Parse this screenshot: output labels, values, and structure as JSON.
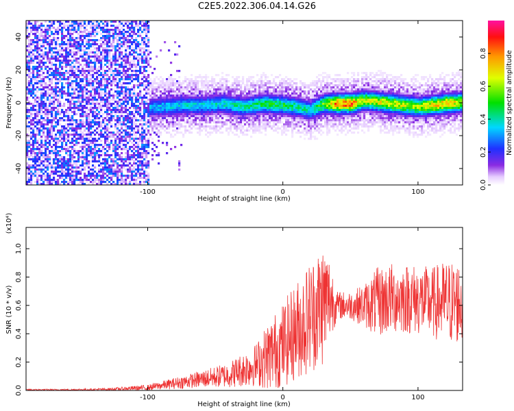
{
  "title": "C2E5.2022.306.04.14.G26",
  "chart_data": [
    {
      "type": "heatmap",
      "xlabel": "Height of straight line (km)",
      "ylabel": "Frequency (Hz)",
      "xlim": [
        -190,
        133
      ],
      "ylim": [
        -50,
        50
      ],
      "xticks": [
        "-100",
        "0",
        "100"
      ],
      "xtick_values": [
        -100,
        0,
        100
      ],
      "yticks": [
        "-40",
        "-20",
        "0",
        "20",
        "40"
      ],
      "ytick_values": [
        -40,
        -20,
        0,
        20,
        40
      ],
      "colorbar": {
        "label": "Normalized spectral amplitude",
        "range": [
          0,
          1
        ],
        "ticks": [
          "0.0",
          "0.2",
          "0.4",
          "0.6",
          "0.8"
        ],
        "tick_values": [
          0.0,
          0.2,
          0.4,
          0.6,
          0.8
        ],
        "colormap": "rainbow (white, purple, blue, cyan, green, yellow, orange, red, magenta)"
      },
      "signal_ridge": {
        "x": [
          -105,
          -90,
          -75,
          -60,
          -45,
          -30,
          -15,
          0,
          10,
          20,
          30,
          40,
          50,
          60,
          70,
          80,
          90,
          100,
          110,
          120,
          133
        ],
        "frequency": [
          -3,
          -2,
          -1,
          -1,
          0,
          -2,
          0,
          -1,
          -2,
          -4,
          0,
          0,
          0,
          2,
          1,
          0,
          -1,
          -2,
          -1,
          0,
          1
        ],
        "amplitude": [
          0.35,
          0.4,
          0.42,
          0.42,
          0.45,
          0.48,
          0.55,
          0.55,
          0.5,
          0.45,
          0.65,
          0.95,
          0.95,
          0.7,
          0.75,
          0.75,
          0.7,
          0.7,
          0.8,
          0.85,
          0.75
        ]
      },
      "noise_region": {
        "x_range": [
          -190,
          -100
        ],
        "frequency_range": [
          -50,
          50
        ],
        "amplitude": [
          0.05,
          0.3
        ]
      }
    },
    {
      "type": "line",
      "xlabel": "Height of straight line (km)",
      "ylabel": "SNR (10 * v/v)",
      "scale_label": "(x10⁴)",
      "xlim": [
        -190,
        133
      ],
      "ylim": [
        0,
        1.15
      ],
      "xticks": [
        "-100",
        "0",
        "100"
      ],
      "xtick_values": [
        -100,
        0,
        100
      ],
      "yticks": [
        "0.0",
        "0.2",
        "0.4",
        "0.6",
        "0.8",
        "1.0"
      ],
      "ytick_values": [
        0.0,
        0.2,
        0.4,
        0.6,
        0.8,
        1.0
      ],
      "color": "#ee3333",
      "envelope": {
        "x": [
          -190,
          -160,
          -130,
          -100,
          -80,
          -60,
          -40,
          -20,
          -10,
          0,
          10,
          20,
          30,
          35,
          40,
          50,
          60,
          70,
          80,
          90,
          100,
          110,
          120,
          133
        ],
        "mean": [
          0.005,
          0.005,
          0.008,
          0.02,
          0.05,
          0.08,
          0.11,
          0.18,
          0.25,
          0.32,
          0.42,
          0.52,
          0.62,
          0.65,
          0.6,
          0.6,
          0.6,
          0.62,
          0.65,
          0.65,
          0.64,
          0.62,
          0.62,
          0.62
        ],
        "spread": [
          0.005,
          0.005,
          0.008,
          0.02,
          0.04,
          0.06,
          0.09,
          0.15,
          0.25,
          0.3,
          0.35,
          0.4,
          0.45,
          0.3,
          0.1,
          0.1,
          0.15,
          0.25,
          0.25,
          0.25,
          0.25,
          0.25,
          0.3,
          0.3
        ]
      }
    }
  ]
}
